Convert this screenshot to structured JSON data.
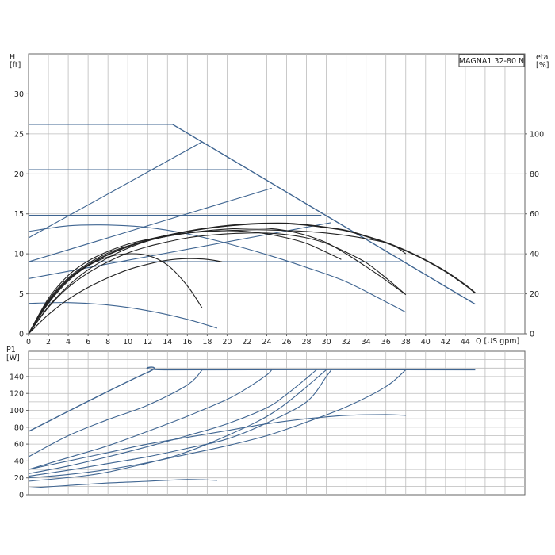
{
  "title": "MAGNA1 32-80 N",
  "colors": {
    "blue": "#3f6591",
    "black": "#222222",
    "grid": "#bcbcbc",
    "frame": "#666666"
  },
  "chart_data": [
    {
      "type": "line",
      "title": "MAGNA1 32-80 N",
      "xlabel": "Q [US gpm]",
      "ylabel": "H\n[ft]",
      "ylabel_right": "eta\n[%]",
      "xlim": [
        0,
        50
      ],
      "ylim": [
        0,
        35
      ],
      "ylim_right": [
        0,
        140
      ],
      "x_ticks": [
        0,
        2,
        4,
        6,
        8,
        10,
        12,
        14,
        16,
        18,
        20,
        22,
        24,
        26,
        28,
        30,
        32,
        34,
        36,
        38,
        40,
        42,
        44
      ],
      "y_ticks": [
        0,
        5,
        10,
        15,
        20,
        25,
        30
      ],
      "y_ticks_right": [
        0,
        20,
        40,
        60,
        80,
        100
      ],
      "grid": true,
      "series": [
        {
          "kind": "head-const",
          "color": "blue",
          "x": [
            0,
            14.5,
            45
          ],
          "y": [
            26.2,
            26.2,
            3.7
          ]
        },
        {
          "kind": "head-const",
          "color": "blue",
          "x": [
            0,
            21.5
          ],
          "y": [
            20.5,
            20.5
          ]
        },
        {
          "kind": "head-const",
          "color": "blue",
          "x": [
            0,
            29.5
          ],
          "y": [
            14.8,
            14.8
          ]
        },
        {
          "kind": "head-const",
          "color": "blue",
          "x": [
            0,
            37.5
          ],
          "y": [
            9.0,
            9.0
          ]
        },
        {
          "kind": "head-prop",
          "color": "blue",
          "x": [
            0,
            17.5
          ],
          "y": [
            12.0,
            24.0
          ]
        },
        {
          "kind": "head-prop",
          "color": "blue",
          "x": [
            0,
            24.5
          ],
          "y": [
            9.0,
            18.2
          ]
        },
        {
          "kind": "head-prop",
          "color": "blue",
          "x": [
            0,
            30.5
          ],
          "y": [
            6.9,
            13.9
          ]
        },
        {
          "kind": "head-curve",
          "color": "blue",
          "x": [
            0,
            4,
            8,
            12,
            16,
            20,
            24,
            28,
            32,
            36,
            38
          ],
          "y": [
            12.8,
            13.5,
            13.6,
            13.3,
            12.5,
            11.3,
            9.9,
            8.3,
            6.5,
            4.0,
            2.7
          ]
        },
        {
          "kind": "head-curve",
          "color": "blue",
          "x": [
            0,
            4,
            8,
            12,
            16,
            19
          ],
          "y": [
            3.8,
            3.9,
            3.6,
            2.9,
            1.8,
            0.7
          ]
        },
        {
          "kind": "max-curve",
          "color": "black",
          "x": [
            0,
            2,
            4,
            6,
            8,
            10,
            12,
            14,
            16,
            18,
            20,
            22,
            24,
            26,
            28,
            30,
            32,
            34,
            36,
            38,
            40,
            42,
            44,
            45
          ],
          "y": [
            0,
            4.0,
            6.8,
            8.6,
            9.9,
            10.9,
            11.7,
            12.3,
            12.8,
            13.2,
            13.5,
            13.7,
            13.8,
            13.8,
            13.6,
            13.3,
            12.9,
            12.2,
            11.4,
            10.4,
            9.2,
            7.8,
            6.1,
            5.1
          ]
        },
        {
          "kind": "eta",
          "color": "black",
          "x": [
            0,
            2,
            4,
            6,
            8,
            10,
            12,
            14,
            16,
            18,
            20,
            22,
            24,
            26,
            28,
            30,
            32,
            34,
            36,
            37,
            38
          ],
          "y": [
            0,
            4.4,
            7.3,
            9.1,
            10.3,
            11.2,
            11.8,
            12.3,
            12.6,
            12.8,
            12.9,
            13.0,
            13.0,
            12.9,
            12.8,
            12.6,
            12.3,
            11.9,
            11.4,
            10.9,
            10.0
          ]
        },
        {
          "kind": "eta",
          "color": "black",
          "x": [
            0,
            2,
            4,
            6,
            8,
            10,
            12,
            14,
            16,
            18,
            20,
            22,
            24,
            26,
            28,
            30,
            32,
            34,
            36,
            38
          ],
          "y": [
            0,
            4.2,
            7.0,
            8.8,
            10.1,
            11.0,
            11.7,
            12.2,
            12.6,
            12.9,
            13.1,
            13.2,
            13.2,
            12.9,
            12.3,
            11.4,
            10.0,
            8.4,
            6.7,
            4.9
          ]
        },
        {
          "kind": "eta",
          "color": "black",
          "x": [
            0,
            2,
            4,
            6,
            8,
            10,
            12,
            14,
            16,
            18,
            20,
            22,
            24,
            26,
            28,
            30,
            31.5
          ],
          "y": [
            0,
            3.4,
            6.0,
            8.0,
            9.5,
            10.7,
            11.6,
            12.2,
            12.6,
            12.8,
            12.9,
            12.8,
            12.5,
            12.0,
            11.3,
            10.2,
            9.3
          ]
        },
        {
          "kind": "eta",
          "color": "black",
          "x": [
            0,
            2,
            4,
            6,
            8,
            10,
            12,
            14,
            16,
            18,
            20,
            22,
            24,
            26,
            28,
            30,
            32,
            34,
            36,
            38
          ],
          "y": [
            0,
            3.3,
            5.8,
            7.6,
            9.0,
            10.1,
            10.9,
            11.5,
            12.0,
            12.3,
            12.5,
            12.6,
            12.6,
            12.4,
            12.0,
            11.3,
            10.2,
            8.9,
            7.0,
            4.9
          ]
        },
        {
          "kind": "eta",
          "color": "black",
          "x": [
            0,
            2,
            4,
            6,
            8,
            10,
            12,
            14,
            16,
            17.5
          ],
          "y": [
            0,
            3.8,
            6.6,
            8.5,
            9.6,
            10.0,
            9.8,
            8.6,
            6.0,
            3.2
          ]
        },
        {
          "kind": "eta",
          "color": "black",
          "x": [
            0,
            2,
            4,
            6,
            8,
            10,
            12,
            14,
            16,
            18,
            19.5
          ],
          "y": [
            0,
            2.4,
            4.3,
            5.8,
            7.0,
            8.0,
            8.7,
            9.2,
            9.4,
            9.3,
            9.0
          ]
        }
      ]
    },
    {
      "type": "line",
      "xlabel": "",
      "ylabel": "P1\n[W]",
      "xlim": [
        0,
        50
      ],
      "ylim": [
        0,
        170
      ],
      "y_ticks": [
        0,
        20,
        40,
        60,
        80,
        100,
        120,
        140
      ],
      "grid": true,
      "series": [
        {
          "kind": "power-limit",
          "color": "blue",
          "x": [
            0,
            12,
            14.5,
            45
          ],
          "y": [
            75,
            145,
            148,
            148
          ]
        },
        {
          "kind": "power",
          "color": "blue",
          "x": [
            0,
            4,
            8,
            12,
            16,
            17.5
          ],
          "y": [
            45,
            70,
            89,
            106,
            130,
            148
          ]
        },
        {
          "kind": "power",
          "color": "blue",
          "x": [
            0,
            4,
            8,
            12,
            16,
            20,
            22,
            24,
            24.5
          ],
          "y": [
            30,
            44,
            58,
            75,
            93,
            113,
            126,
            142,
            148
          ]
        },
        {
          "kind": "power",
          "color": "blue",
          "x": [
            0,
            4,
            8,
            12,
            16,
            20,
            24,
            26,
            28,
            29
          ],
          "y": [
            25,
            34,
            45,
            57,
            70,
            84,
            103,
            119,
            138,
            148
          ]
        },
        {
          "kind": "power",
          "color": "blue",
          "x": [
            0,
            4,
            8,
            12,
            16,
            20,
            24,
            28,
            30,
            30.5
          ],
          "y": [
            22,
            29,
            37,
            45,
            55,
            66,
            85,
            110,
            140,
            148
          ]
        },
        {
          "kind": "power",
          "color": "blue",
          "x": [
            0,
            4,
            8,
            12,
            16,
            20,
            24,
            28,
            32,
            36,
            38
          ],
          "y": [
            20,
            24,
            30,
            38,
            48,
            58,
            70,
            86,
            104,
            128,
            148
          ]
        },
        {
          "kind": "power",
          "color": "blue",
          "x": [
            0,
            4,
            8,
            12,
            16,
            20,
            24,
            28,
            32,
            36,
            38
          ],
          "y": [
            30,
            40,
            50,
            60,
            68,
            76,
            84,
            90,
            94,
            95,
            94
          ]
        },
        {
          "kind": "power",
          "color": "blue",
          "x": [
            0,
            4,
            8,
            12,
            16,
            19
          ],
          "y": [
            8,
            11,
            14,
            16,
            18,
            17
          ]
        },
        {
          "kind": "power",
          "color": "blue",
          "x": [
            0,
            6,
            10,
            15,
            20,
            25,
            30
          ],
          "y": [
            16,
            23,
            32,
            47,
            70,
            100,
            148
          ]
        }
      ]
    }
  ]
}
